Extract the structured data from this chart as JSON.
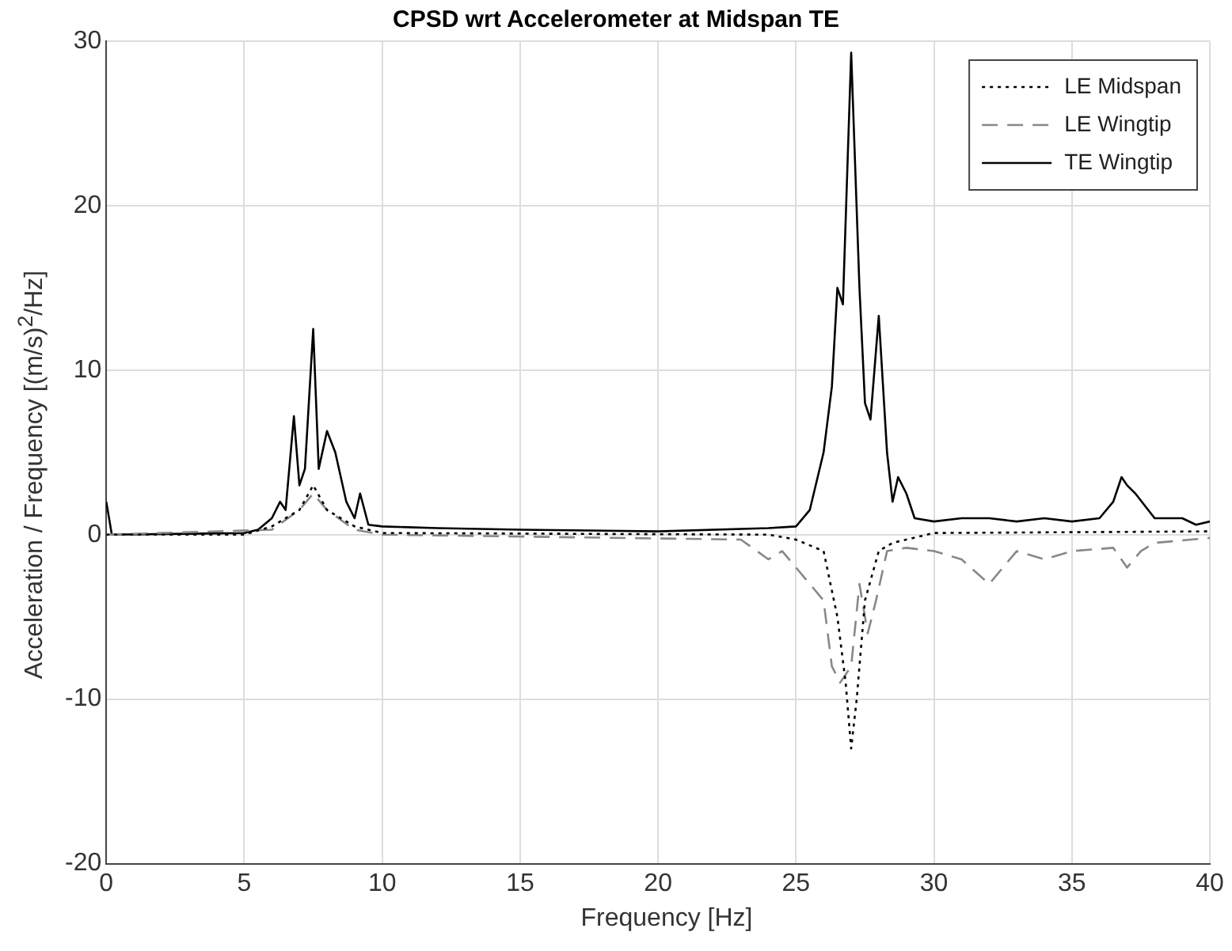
{
  "chart_data": {
    "type": "line",
    "title": "CPSD wrt Accelerometer at Midspan TE",
    "xlabel": "Frequency [Hz]",
    "ylabel": "Acceleration / Frequency [(m/s)$^{2}$/Hz]",
    "xlim": [
      0,
      40
    ],
    "ylim": [
      -20,
      30
    ],
    "xticks": [
      0,
      5,
      10,
      15,
      20,
      25,
      30,
      35,
      40
    ],
    "yticks": [
      -20,
      -10,
      0,
      10,
      20,
      30
    ],
    "grid": true,
    "legend": "top right",
    "marker": "none",
    "series": [
      {
        "name": "LE Midspan",
        "color": "#000000",
        "line_style": "dotted",
        "x": [
          0,
          5,
          6,
          7,
          7.5,
          8,
          9,
          10,
          24,
          25,
          26,
          26.5,
          26.8,
          27,
          27.2,
          27.5,
          28,
          28.5,
          30,
          40
        ],
        "values": [
          0,
          0,
          0.5,
          1.5,
          3,
          1.5,
          0.5,
          0.1,
          0,
          -0.3,
          -1,
          -5,
          -9,
          -13,
          -10,
          -4,
          -1,
          -0.5,
          0.1,
          0.2
        ]
      },
      {
        "name": "LE Wingtip",
        "color": "#888888",
        "line_style": "dashed",
        "x": [
          0,
          6,
          7,
          7.5,
          8,
          9,
          10,
          23,
          24,
          24.5,
          25,
          25.5,
          26,
          26.3,
          26.6,
          27,
          27.3,
          27.6,
          27.9,
          28.3,
          29,
          30,
          31,
          32,
          33,
          34,
          35,
          36.5,
          37,
          37.5,
          38,
          40
        ],
        "values": [
          0,
          0.3,
          1.5,
          2.5,
          1.5,
          0.3,
          0,
          -0.3,
          -1.5,
          -1,
          -2,
          -3,
          -4,
          -8,
          -9,
          -8,
          -3,
          -6,
          -4,
          -1,
          -0.8,
          -1,
          -1.5,
          -3,
          -1,
          -1.5,
          -1,
          -0.8,
          -2,
          -1,
          -0.5,
          -0.2
        ]
      },
      {
        "name": "TE Wingtip",
        "color": "#000000",
        "line_style": "solid",
        "x": [
          0,
          0.2,
          5,
          5.5,
          6,
          6.3,
          6.5,
          6.8,
          7,
          7.2,
          7.5,
          7.7,
          8,
          8.3,
          8.7,
          9,
          9.2,
          9.5,
          10,
          12,
          15,
          20,
          24,
          25,
          25.5,
          26,
          26.3,
          26.5,
          26.7,
          27,
          27.3,
          27.5,
          27.7,
          28,
          28.3,
          28.5,
          28.7,
          29,
          29.3,
          30,
          31,
          32,
          33,
          34,
          35,
          36,
          36.5,
          36.8,
          37,
          37.3,
          38,
          39,
          39.5,
          40
        ],
        "values": [
          2,
          0,
          0.1,
          0.3,
          1,
          2,
          1.5,
          7.2,
          3,
          4,
          12.5,
          4,
          6.3,
          5,
          2,
          1,
          2.5,
          0.6,
          0.5,
          0.4,
          0.3,
          0.2,
          0.4,
          0.5,
          1.5,
          5,
          9,
          15,
          14,
          29.3,
          15,
          8,
          7,
          13.3,
          5,
          2,
          3.5,
          2.5,
          1,
          0.8,
          1,
          1,
          0.8,
          1,
          0.8,
          1,
          2,
          3.5,
          3,
          2.5,
          1,
          1,
          0.6,
          0.8
        ]
      }
    ]
  }
}
